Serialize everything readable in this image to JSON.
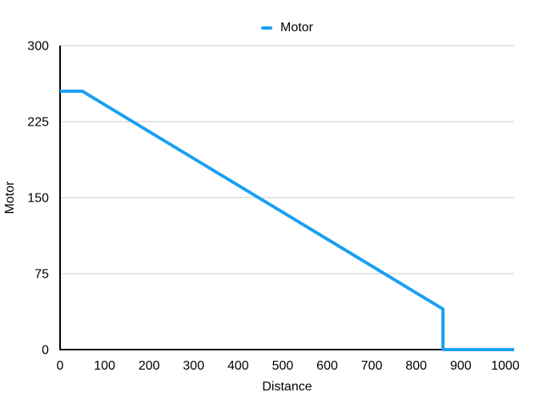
{
  "chart_data": {
    "type": "line",
    "title": "",
    "xlabel": "Distance",
    "ylabel": "Motor",
    "xlim": [
      0,
      1020
    ],
    "ylim": [
      0,
      300
    ],
    "x_ticks": [
      0,
      100,
      200,
      300,
      400,
      500,
      600,
      700,
      800,
      900,
      1000
    ],
    "y_ticks": [
      0,
      75,
      150,
      225,
      300
    ],
    "grid": "horizontal-only",
    "legend_position": "top-center",
    "series": [
      {
        "name": "Motor",
        "color": "#1BA0F2",
        "line_width": 4,
        "points": [
          {
            "x": 0,
            "y": 255
          },
          {
            "x": 50,
            "y": 255
          },
          {
            "x": 860,
            "y": 40
          },
          {
            "x": 860,
            "y": 0
          },
          {
            "x": 1020,
            "y": 0
          }
        ]
      }
    ],
    "colors": {
      "grid": "#C9C9C9",
      "axis": "#000000",
      "text": "#000000",
      "background": "#FFFFFF"
    }
  }
}
